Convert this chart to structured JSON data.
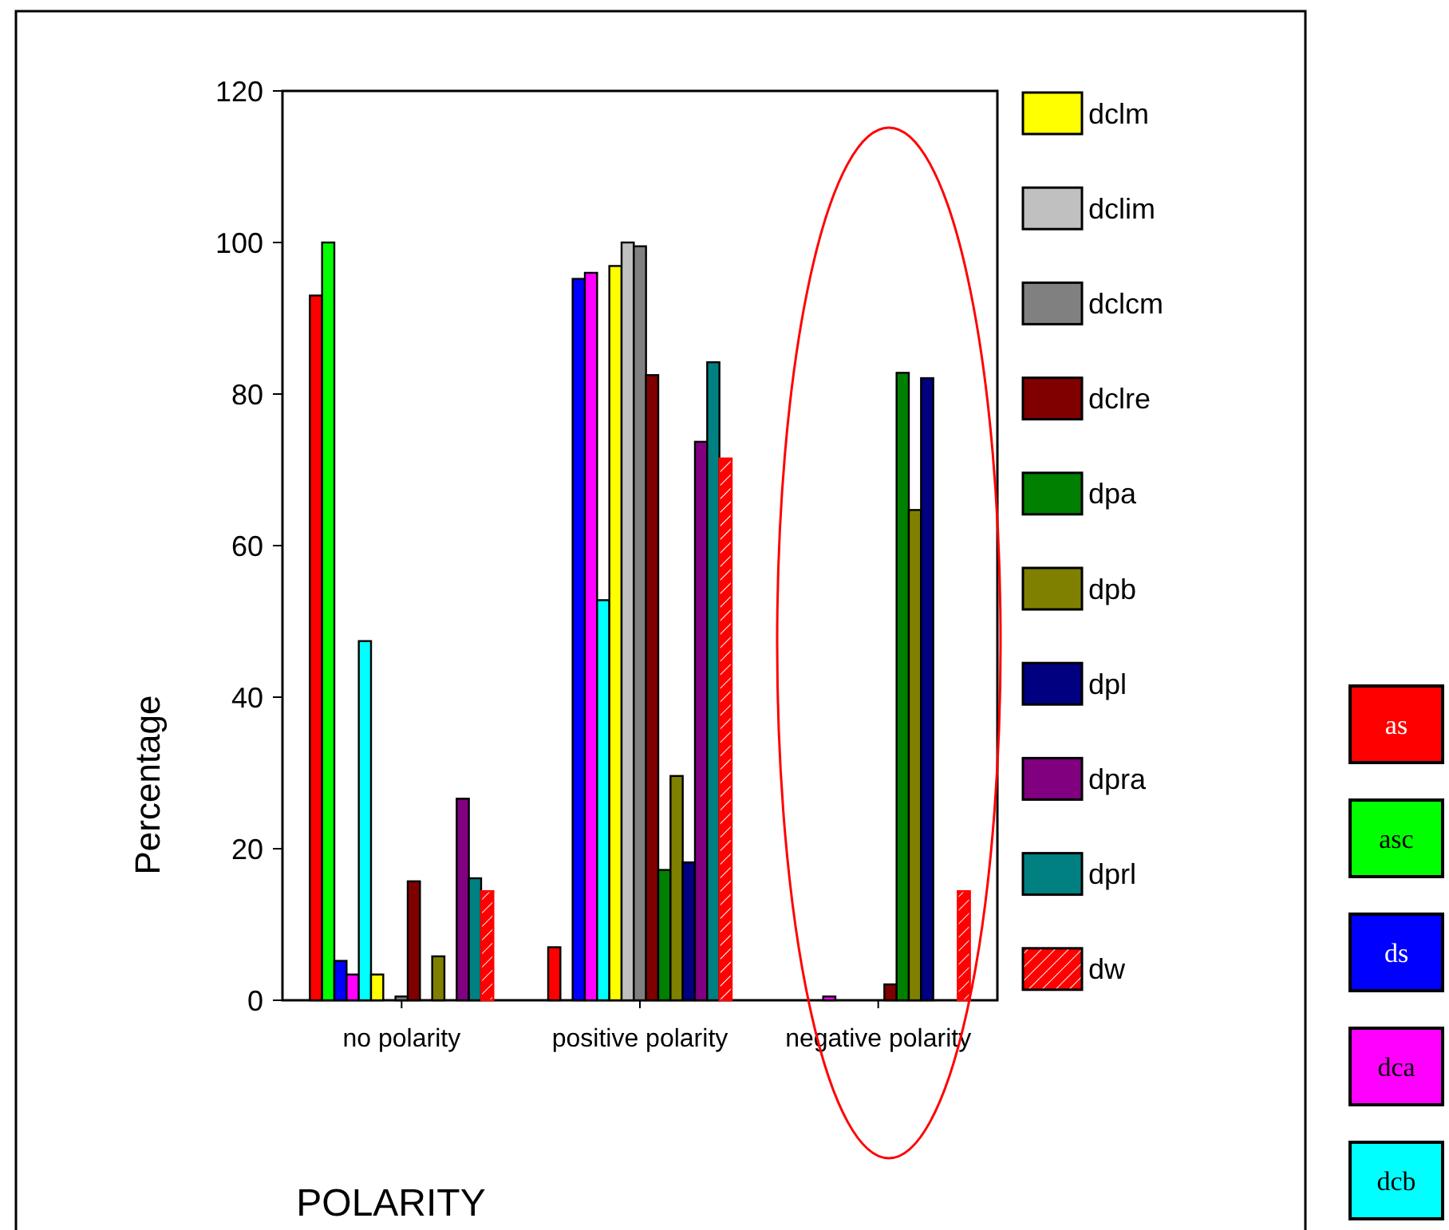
{
  "chart_data": {
    "type": "bar",
    "xlabel": "POLARITY",
    "ylabel": "Percentage",
    "categories": [
      "no polarity",
      "positive polarity",
      "negative polarity"
    ],
    "ylim": [
      0,
      120
    ],
    "yticks": [
      0,
      20,
      40,
      60,
      80,
      100,
      120
    ],
    "grid": false,
    "legend": "right",
    "series": [
      {
        "name": "as",
        "color": "#ff0000",
        "values": [
          93,
          7,
          0
        ]
      },
      {
        "name": "asc",
        "color": "#00ff00",
        "values": [
          100,
          0,
          0
        ]
      },
      {
        "name": "ds",
        "color": "#0000ff",
        "values": [
          5.2,
          95.2,
          0
        ]
      },
      {
        "name": "dca",
        "color": "#ff00ff",
        "values": [
          3.4,
          96,
          0.5
        ]
      },
      {
        "name": "dcb",
        "color": "#00ffff",
        "values": [
          47.4,
          52.8,
          0
        ]
      },
      {
        "name": "dclm",
        "color": "#ffff00",
        "values": [
          3.4,
          96.9,
          0
        ]
      },
      {
        "name": "dclim",
        "color": "#c0c0c0",
        "values": [
          0,
          100,
          0
        ]
      },
      {
        "name": "dclcm",
        "color": "#808080",
        "values": [
          0.5,
          99.5,
          0
        ]
      },
      {
        "name": "dclre",
        "color": "#800000",
        "values": [
          15.7,
          82.5,
          2.1
        ]
      },
      {
        "name": "dpa",
        "color": "#008000",
        "values": [
          0,
          17.2,
          82.8
        ]
      },
      {
        "name": "dpb",
        "color": "#808000",
        "values": [
          5.8,
          29.6,
          64.7
        ]
      },
      {
        "name": "dpl",
        "color": "#000080",
        "values": [
          0,
          18.2,
          82.1
        ]
      },
      {
        "name": "dpra",
        "color": "#800080",
        "values": [
          26.6,
          73.7,
          0
        ]
      },
      {
        "name": "dprl",
        "color": "#008080",
        "values": [
          16.1,
          84.2,
          0
        ]
      },
      {
        "name": "dw",
        "color": "#ff0000",
        "values": [
          14.4,
          71.5,
          14.4
        ]
      }
    ]
  }
}
